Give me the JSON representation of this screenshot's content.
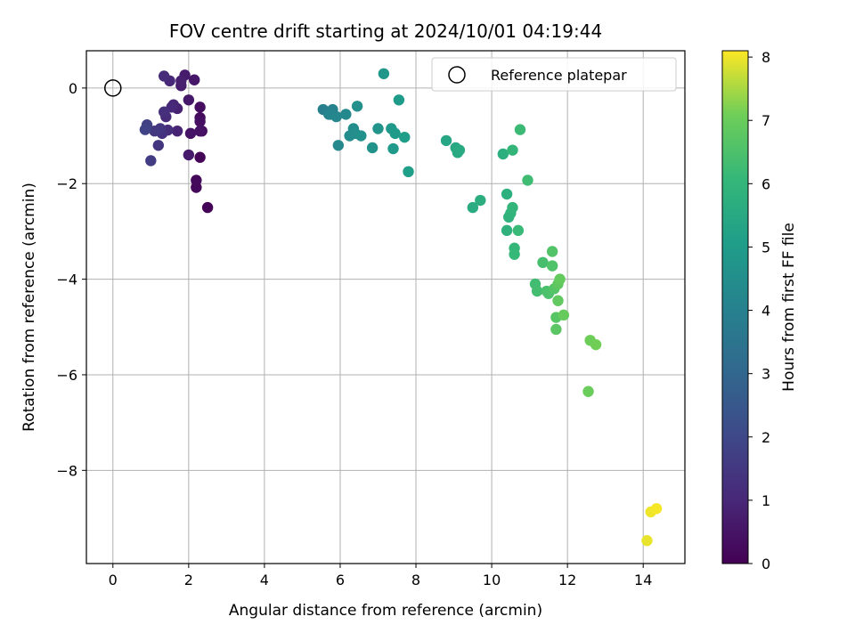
{
  "chart_data": {
    "type": "scatter",
    "title": "FOV centre drift starting at 2024/10/01 04:19:44",
    "xlabel": "Angular distance from reference (arcmin)",
    "ylabel": "Rotation from reference (arcmin)",
    "xlim": [
      -0.7,
      15.1
    ],
    "ylim": [
      -9.95,
      0.78
    ],
    "x_ticks": [
      0,
      2,
      4,
      6,
      8,
      10,
      12,
      14
    ],
    "y_ticks": [
      0,
      -2,
      -4,
      -6,
      -8
    ],
    "x_tick_labels": [
      "0",
      "2",
      "4",
      "6",
      "8",
      "10",
      "12",
      "14"
    ],
    "y_tick_labels": [
      "0",
      "−2",
      "−4",
      "−6",
      "−8"
    ],
    "grid": true,
    "legend": {
      "position": "top-right",
      "entries": [
        "Reference platepar"
      ]
    },
    "reference_point": {
      "x": 0,
      "y": 0,
      "marker": "open-circle"
    },
    "colorbar": {
      "label": "Hours from first FF file",
      "colormap": "viridis",
      "range": [
        0,
        8.1
      ],
      "ticks": [
        0,
        1,
        2,
        3,
        4,
        5,
        6,
        7,
        8
      ],
      "tick_labels": [
        "0",
        "1",
        "2",
        "3",
        "4",
        "5",
        "6",
        "7",
        "8"
      ]
    },
    "series": [
      {
        "x": [
          2.5,
          2.3,
          2.2,
          2.2,
          2.3,
          2.35,
          2.3,
          2.3,
          2.3,
          2.05,
          2.15,
          2.0,
          2.0,
          1.9,
          1.8,
          1.8,
          1.7,
          1.7,
          1.6,
          1.5,
          1.55,
          1.4,
          1.35,
          1.45,
          1.35,
          1.3,
          1.2,
          1.25,
          1.1,
          1.0,
          0.9,
          0.85
        ],
        "y": [
          -2.5,
          -1.45,
          -2.08,
          -1.93,
          -0.62,
          -0.9,
          -0.4,
          -0.7,
          -0.9,
          -0.95,
          0.17,
          -0.25,
          -1.4,
          0.27,
          0.05,
          0.15,
          -0.43,
          -0.9,
          -0.35,
          0.15,
          -0.4,
          -0.6,
          0.25,
          -0.88,
          -0.5,
          -0.95,
          -1.2,
          -0.85,
          -0.9,
          -1.52,
          -0.77,
          -0.87
        ],
        "hours": [
          0.05,
          0.1,
          0.15,
          0.2,
          0.25,
          0.3,
          0.35,
          0.4,
          0.45,
          0.5,
          0.55,
          0.6,
          0.65,
          0.7,
          0.75,
          0.8,
          0.85,
          0.9,
          0.95,
          1.0,
          1.05,
          1.1,
          1.15,
          1.2,
          1.25,
          1.3,
          1.4,
          1.45,
          1.5,
          1.65,
          1.75,
          1.85
        ]
      },
      {
        "x": [
          5.55,
          5.7,
          5.8,
          5.75,
          5.9,
          5.95,
          6.15,
          6.25,
          6.35,
          6.4,
          6.45,
          6.55,
          6.85,
          7.0,
          7.15,
          7.35,
          7.4,
          7.45,
          7.55,
          7.7,
          7.8
        ],
        "y": [
          -0.45,
          -0.55,
          -0.45,
          -0.55,
          -0.6,
          -1.2,
          -0.55,
          -1.0,
          -0.85,
          -0.95,
          -0.38,
          -1.0,
          -1.25,
          -0.85,
          0.3,
          -0.85,
          -1.27,
          -0.95,
          -0.25,
          -1.03,
          -1.75
        ],
        "hours": [
          3.95,
          4.05,
          4.1,
          4.15,
          4.2,
          4.25,
          4.3,
          4.4,
          4.45,
          4.5,
          4.55,
          4.6,
          4.65,
          4.7,
          4.8,
          4.85,
          4.9,
          4.95,
          5.0,
          5.05,
          5.1
        ]
      },
      {
        "x": [
          8.8,
          9.05,
          9.1,
          9.15,
          9.5,
          9.7,
          10.3,
          10.4,
          10.4,
          10.45,
          10.5,
          10.55,
          10.55,
          10.6,
          10.6,
          10.7,
          10.75,
          10.95,
          11.15,
          11.2,
          11.35,
          11.45,
          11.5,
          11.6,
          11.6,
          11.65,
          11.7,
          11.7,
          11.75,
          11.75,
          11.8,
          11.9,
          12.55,
          12.6,
          12.75
        ],
        "y": [
          -1.1,
          -1.25,
          -1.35,
          -1.3,
          -2.5,
          -2.35,
          -1.38,
          -2.22,
          -2.98,
          -2.7,
          -2.62,
          -2.5,
          -1.3,
          -3.35,
          -3.48,
          -2.98,
          -0.87,
          -1.93,
          -4.1,
          -4.25,
          -3.65,
          -4.25,
          -4.3,
          -3.72,
          -3.42,
          -4.2,
          -4.8,
          -5.05,
          -4.1,
          -4.45,
          -4.0,
          -4.75,
          -6.35,
          -5.28,
          -5.37
        ],
        "hours": [
          5.4,
          5.45,
          5.5,
          5.55,
          5.6,
          5.65,
          5.7,
          5.75,
          5.8,
          5.85,
          5.9,
          5.95,
          6.0,
          6.05,
          6.1,
          6.15,
          6.2,
          6.25,
          6.3,
          6.35,
          6.4,
          6.45,
          6.5,
          6.55,
          6.6,
          6.65,
          6.7,
          6.75,
          6.8,
          6.85,
          6.9,
          6.95,
          7.0,
          7.05,
          7.1
        ]
      },
      {
        "x": [
          14.1,
          14.2,
          14.35
        ],
        "y": [
          -9.47,
          -8.87,
          -8.8
        ],
        "hours": [
          7.95,
          8.0,
          8.05
        ]
      }
    ]
  }
}
